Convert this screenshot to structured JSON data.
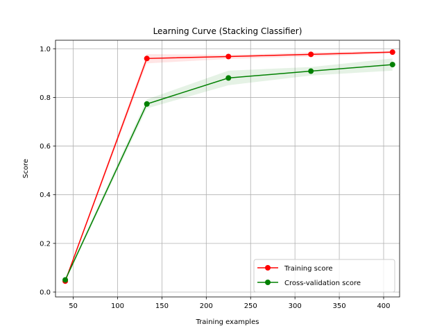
{
  "chart_data": {
    "type": "line",
    "title": "Learning Curve (Stacking Classifier)",
    "xlabel": "Training examples",
    "ylabel": "Score",
    "xlim": [
      30,
      418
    ],
    "ylim": [
      -0.02,
      1.035
    ],
    "xticks": [
      50,
      100,
      150,
      200,
      250,
      300,
      350,
      400
    ],
    "yticks": [
      0.0,
      0.2,
      0.4,
      0.6,
      0.8,
      1.0
    ],
    "xtick_labels": [
      "50",
      "100",
      "150",
      "200",
      "250",
      "300",
      "350",
      "400"
    ],
    "ytick_labels": [
      "0.0",
      "0.2",
      "0.4",
      "0.6",
      "0.8",
      "1.0"
    ],
    "grid": true,
    "legend_position": "lower-right",
    "x": [
      41,
      133,
      225,
      318,
      410
    ],
    "series": [
      {
        "name": "Training score",
        "color": "#ff0000",
        "values": [
          0.045,
          0.96,
          0.968,
          0.977,
          0.986
        ],
        "band_lower": [
          0.04,
          0.94,
          0.958,
          0.968,
          0.98
        ],
        "band_upper": [
          0.05,
          0.978,
          0.975,
          0.985,
          0.992
        ]
      },
      {
        "name": "Cross-validation score",
        "color": "#008000",
        "values": [
          0.05,
          0.773,
          0.88,
          0.908,
          0.935
        ],
        "band_lower": [
          0.042,
          0.755,
          0.85,
          0.89,
          0.91
        ],
        "band_upper": [
          0.058,
          0.792,
          0.91,
          0.925,
          0.96
        ]
      }
    ]
  }
}
